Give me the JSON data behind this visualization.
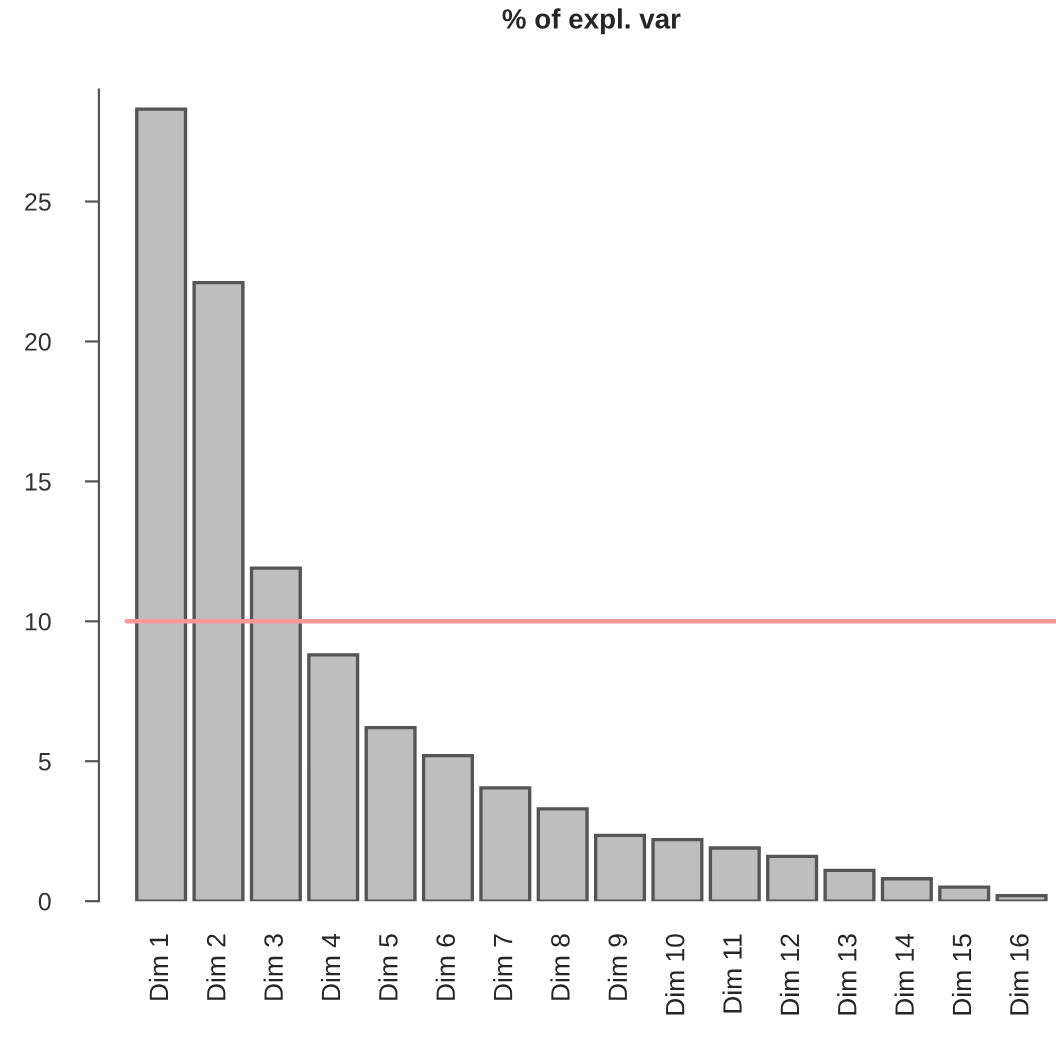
{
  "chart_data": {
    "type": "bar",
    "title": "% of expl. var",
    "categories": [
      "Dim 1",
      "Dim 2",
      "Dim 3",
      "Dim 4",
      "Dim 5",
      "Dim 6",
      "Dim 7",
      "Dim 8",
      "Dim 9",
      "Dim 10",
      "Dim 11",
      "Dim 12",
      "Dim 13",
      "Dim 14",
      "Dim 15",
      "Dim 16"
    ],
    "values": [
      28.3,
      22.1,
      11.9,
      8.8,
      6.2,
      5.2,
      4.05,
      3.3,
      2.35,
      2.2,
      1.9,
      1.6,
      1.1,
      0.8,
      0.5,
      0.2
    ],
    "color": "#bebebe",
    "ylim": [
      0,
      29
    ],
    "yticks": [
      0,
      5,
      10,
      15,
      20,
      25
    ],
    "ref_lines": [
      {
        "axis": "y",
        "value": 10,
        "label": null,
        "color": "#ff9999"
      }
    ],
    "grid": false,
    "legend": false
  }
}
